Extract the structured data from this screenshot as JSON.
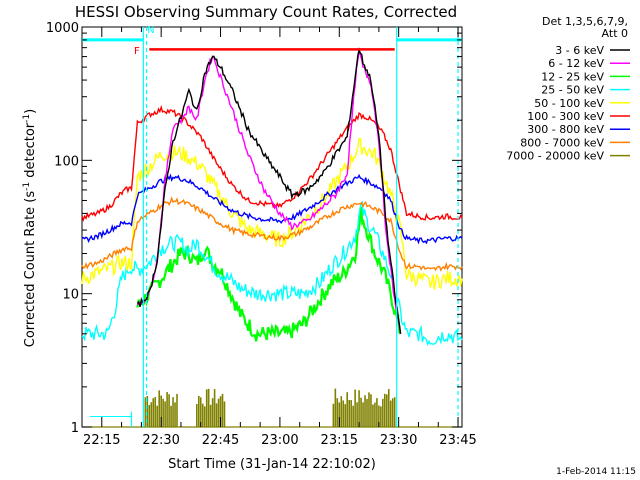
{
  "chart_data": {
    "type": "line",
    "title": "HESSI Observing Summary Count Rates, Corrected",
    "xlabel": "Start Time (31-Jan-14 22:10:02)",
    "ylabel_main": "Corrected Count Rate (s",
    "ylabel_sup1": "-1",
    "ylabel_mid": " detector",
    "ylabel_sup2": "-1",
    "ylabel_end": ")",
    "x_unit": "minutes since 22:10:02",
    "xlim": [
      0,
      96
    ],
    "ylim": [
      1,
      1000
    ],
    "yscale": "log",
    "x_ticks": [
      {
        "label": "22:15",
        "value": 5
      },
      {
        "label": "22:30",
        "value": 20
      },
      {
        "label": "22:45",
        "value": 35
      },
      {
        "label": "23:00",
        "value": 50
      },
      {
        "label": "23:15",
        "value": 65
      },
      {
        "label": "23:30",
        "value": 80
      },
      {
        "label": "23:45",
        "value": 95
      }
    ],
    "y_ticks": [
      {
        "label": "1",
        "value": 1
      },
      {
        "label": "10",
        "value": 10
      },
      {
        "label": "100",
        "value": 100
      },
      {
        "label": "1000",
        "value": 1000
      }
    ],
    "legend_title_1": "Det 1,3,5,6,7,9,",
    "legend_title_2": "Att 0",
    "legend_position": "right",
    "flags": [
      {
        "label": "F",
        "color": "#ff0000"
      },
      {
        "label": "N",
        "color": "#00ffff"
      }
    ],
    "footer_date": "1-Feb-2014 11:15",
    "series": [
      {
        "name": "3 - 6 keV",
        "color": "#000000",
        "x": [
          14,
          17,
          19,
          21,
          23,
          25,
          27,
          29,
          31,
          33,
          35,
          38,
          42,
          46,
          50,
          53,
          57,
          61,
          64,
          67,
          69,
          70,
          71,
          73,
          75,
          77,
          79,
          80.5
        ],
        "y": [
          8,
          10,
          18,
          60,
          140,
          210,
          330,
          230,
          450,
          600,
          500,
          330,
          170,
          110,
          75,
          55,
          60,
          80,
          110,
          150,
          420,
          700,
          550,
          400,
          150,
          30,
          10,
          5
        ]
      },
      {
        "name": "6 - 12 keV",
        "color": "#ff00ff",
        "x": [
          14,
          17,
          19,
          21,
          23,
          25,
          27,
          29,
          31,
          33,
          35,
          38,
          42,
          46,
          50,
          53,
          57,
          61,
          64,
          67,
          69,
          70,
          71,
          73,
          75,
          77,
          79,
          80.5
        ],
        "y": [
          8,
          10,
          18,
          70,
          180,
          200,
          250,
          200,
          400,
          620,
          420,
          240,
          110,
          60,
          40,
          32,
          35,
          45,
          55,
          80,
          380,
          650,
          500,
          380,
          140,
          25,
          9,
          5
        ]
      },
      {
        "name": "12 - 25 keV",
        "color": "#00ff00",
        "x": [
          14,
          17,
          20,
          23,
          25,
          27,
          29,
          31,
          33,
          35,
          37,
          40,
          44,
          48,
          52,
          56,
          60,
          63,
          66,
          69,
          70.5,
          72,
          74,
          76,
          78,
          80.5
        ],
        "y": [
          8,
          10,
          13,
          17,
          20,
          20,
          17,
          22,
          17,
          15,
          11,
          7,
          5,
          5,
          5,
          6,
          9,
          12,
          14,
          20,
          40,
          30,
          20,
          15,
          10,
          5
        ]
      },
      {
        "name": "25 - 50 keV",
        "color": "#00ffff",
        "x": [
          0,
          4,
          6.5,
          8.5,
          10,
          11.5,
          12.5,
          14,
          17,
          20,
          23,
          25,
          27,
          29,
          31,
          34,
          37,
          40,
          44,
          48,
          52,
          56,
          60,
          63,
          66,
          69,
          70.5,
          72,
          74,
          76,
          78,
          80.5,
          82,
          85,
          88,
          92,
          96
        ],
        "y": [
          5,
          5,
          5,
          8,
          13,
          15,
          16,
          15,
          17,
          22,
          24,
          24,
          21,
          24,
          20,
          15,
          13,
          11,
          10,
          10,
          10,
          10,
          12,
          16,
          20,
          27,
          45,
          35,
          28,
          20,
          14,
          7,
          5,
          5,
          4.5,
          5,
          4.5
        ]
      },
      {
        "name": "50 - 100 keV",
        "color": "#ffff00",
        "x": [
          0,
          3,
          6,
          8,
          9.5,
          11,
          12.5,
          14,
          17,
          20,
          23,
          26,
          30,
          34,
          38,
          42,
          46,
          50,
          54,
          58,
          62,
          65,
          68,
          70,
          72,
          74,
          76,
          78,
          80.5,
          82,
          85,
          88,
          92,
          96
        ],
        "y": [
          13,
          14,
          15,
          16,
          17,
          17,
          17,
          75,
          90,
          110,
          115,
          110,
          90,
          60,
          40,
          30,
          28,
          25,
          30,
          40,
          55,
          75,
          100,
          130,
          120,
          110,
          80,
          55,
          30,
          14,
          13,
          12,
          13,
          13
        ]
      },
      {
        "name": "100 - 300 keV",
        "color": "#ff0000",
        "x": [
          0,
          4,
          7,
          9.5,
          11,
          12.5,
          14,
          17,
          20,
          23,
          26,
          30,
          34,
          38,
          42,
          46,
          50,
          54,
          58,
          62,
          66,
          70,
          72,
          74,
          76,
          78,
          80.5,
          82,
          85,
          88,
          92,
          96
        ],
        "y": [
          37,
          40,
          45,
          55,
          60,
          62,
          190,
          220,
          240,
          230,
          200,
          150,
          95,
          65,
          50,
          47,
          45,
          55,
          75,
          110,
          160,
          220,
          210,
          190,
          160,
          120,
          60,
          40,
          38,
          37,
          38,
          37
        ]
      },
      {
        "name": "300 - 800 keV",
        "color": "#0000ff",
        "x": [
          0,
          4,
          7,
          9.5,
          11,
          12.5,
          14,
          17,
          20,
          23,
          26,
          30,
          34,
          38,
          42,
          46,
          50,
          54,
          58,
          62,
          66,
          70,
          72,
          74,
          76,
          78,
          80.5,
          82,
          85,
          88,
          92,
          96
        ],
        "y": [
          25,
          27,
          30,
          33,
          34,
          34,
          55,
          62,
          70,
          75,
          72,
          62,
          50,
          42,
          38,
          36,
          35,
          38,
          45,
          55,
          65,
          75,
          70,
          65,
          60,
          50,
          30,
          26,
          25,
          25,
          26,
          26
        ]
      },
      {
        "name": "800 - 7000 keV",
        "color": "#ff8000",
        "x": [
          0,
          4,
          7,
          9.5,
          11,
          12.5,
          14,
          17,
          20,
          23,
          26,
          30,
          34,
          38,
          42,
          46,
          50,
          54,
          58,
          62,
          66,
          70,
          72,
          74,
          76,
          78,
          80.5,
          82,
          85,
          88,
          92,
          96
        ],
        "y": [
          16,
          17,
          19,
          21,
          22,
          22,
          35,
          40,
          46,
          50,
          48,
          42,
          35,
          30,
          28,
          27,
          26,
          28,
          32,
          38,
          44,
          48,
          46,
          43,
          40,
          35,
          20,
          16,
          16,
          15,
          16,
          16
        ]
      },
      {
        "name": "7000 - 20000 keV",
        "color": "#808000",
        "x": [
          0,
          15.5,
          23,
          31,
          36,
          40,
          50,
          60,
          64,
          70,
          76,
          79,
          96
        ],
        "y": [
          1,
          1,
          1.9,
          1.9,
          1.7,
          1,
          1,
          1,
          1.7,
          1.9,
          1.8,
          1,
          1
        ]
      }
    ]
  }
}
